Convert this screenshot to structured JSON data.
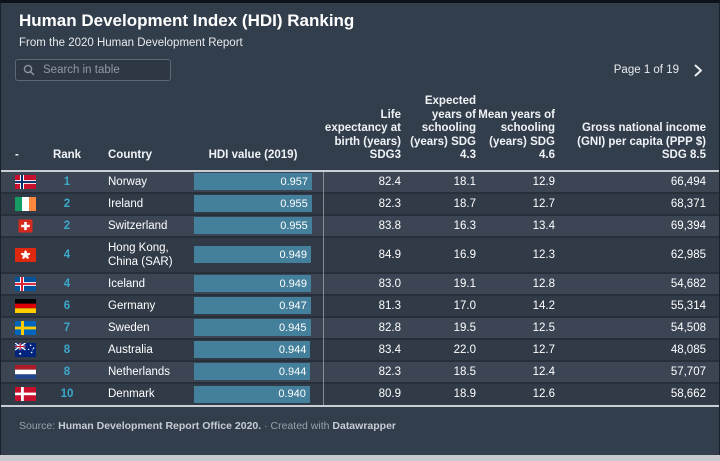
{
  "header": {
    "title": "Human Development Index (HDI) Ranking",
    "subtitle": "From the 2020 Human Development Report"
  },
  "search": {
    "placeholder": "Search in table",
    "icon": "search-icon"
  },
  "pagination": {
    "label": "Page 1 of 19",
    "next_icon": "chevron-right-icon"
  },
  "colors": {
    "panel_bg": "#333e4c",
    "row_light": "#3b4554",
    "row_dark": "#313b48",
    "bar_fill": "#44809b",
    "rank_accent": "#3da9c9",
    "header_rule": "#c9ced5"
  },
  "table": {
    "columns": [
      {
        "label": "-"
      },
      {
        "label": "Rank"
      },
      {
        "label": "Country"
      },
      {
        "label": "HDI value (2019)"
      },
      {
        "label": "Life expectancy at birth (years) SDG3"
      },
      {
        "label": "Expected years of schooling (years) SDG 4.3"
      },
      {
        "label": "Mean years of schooling (years) SDG 4.6"
      },
      {
        "label": "Gross national income (GNI) per capita (PPP $) SDG 8.5"
      }
    ],
    "rows": [
      {
        "flag": "no",
        "rank": "1",
        "country": "Norway",
        "hdi": "0.957",
        "hdi_value": 0.957,
        "life": "82.4",
        "expected": "18.1",
        "mean": "12.9",
        "gni": "66,494"
      },
      {
        "flag": "ie",
        "rank": "2",
        "country": "Ireland",
        "hdi": "0.955",
        "hdi_value": 0.955,
        "life": "82.3",
        "expected": "18.7",
        "mean": "12.7",
        "gni": "68,371"
      },
      {
        "flag": "ch",
        "rank": "2",
        "country": "Switzerland",
        "hdi": "0.955",
        "hdi_value": 0.955,
        "life": "83.8",
        "expected": "16.3",
        "mean": "13.4",
        "gni": "69,394"
      },
      {
        "flag": "hk",
        "rank": "4",
        "country": "Hong Kong, China (SAR)",
        "hdi": "0.949",
        "hdi_value": 0.949,
        "life": "84.9",
        "expected": "16.9",
        "mean": "12.3",
        "gni": "62,985"
      },
      {
        "flag": "is",
        "rank": "4",
        "country": "Iceland",
        "hdi": "0.949",
        "hdi_value": 0.949,
        "life": "83.0",
        "expected": "19.1",
        "mean": "12.8",
        "gni": "54,682"
      },
      {
        "flag": "de",
        "rank": "6",
        "country": "Germany",
        "hdi": "0.947",
        "hdi_value": 0.947,
        "life": "81.3",
        "expected": "17.0",
        "mean": "14.2",
        "gni": "55,314"
      },
      {
        "flag": "se",
        "rank": "7",
        "country": "Sweden",
        "hdi": "0.945",
        "hdi_value": 0.945,
        "life": "82.8",
        "expected": "19.5",
        "mean": "12.5",
        "gni": "54,508"
      },
      {
        "flag": "au",
        "rank": "8",
        "country": "Australia",
        "hdi": "0.944",
        "hdi_value": 0.944,
        "life": "83.4",
        "expected": "22.0",
        "mean": "12.7",
        "gni": "48,085"
      },
      {
        "flag": "nl",
        "rank": "8",
        "country": "Netherlands",
        "hdi": "0.944",
        "hdi_value": 0.944,
        "life": "82.3",
        "expected": "18.5",
        "mean": "12.4",
        "gni": "57,707"
      },
      {
        "flag": "dk",
        "rank": "10",
        "country": "Denmark",
        "hdi": "0.940",
        "hdi_value": 0.94,
        "life": "80.9",
        "expected": "18.9",
        "mean": "12.6",
        "gni": "58,662"
      }
    ]
  },
  "footer": {
    "source_prefix": "Source:",
    "source_link": "Human Development Report Office 2020.",
    "separator": "·",
    "created_prefix": "Created with",
    "created_link": "Datawrapper"
  },
  "chart_data": {
    "type": "table",
    "title": "Human Development Index (HDI) Ranking",
    "subtitle": "From the 2020 Human Development Report",
    "bar_column": {
      "name": "HDI value (2019)",
      "range": [
        0,
        0.957
      ],
      "fill": "#44809b"
    },
    "columns": [
      "Rank",
      "Country",
      "HDI value (2019)",
      "Life expectancy at birth (years) SDG3",
      "Expected years of schooling (years) SDG 4.3",
      "Mean years of schooling (years) SDG 4.6",
      "Gross national income (GNI) per capita (PPP $) SDG 8.5"
    ],
    "rows": [
      [
        1,
        "Norway",
        0.957,
        82.4,
        18.1,
        12.9,
        66494
      ],
      [
        2,
        "Ireland",
        0.955,
        82.3,
        18.7,
        12.7,
        68371
      ],
      [
        2,
        "Switzerland",
        0.955,
        83.8,
        16.3,
        13.4,
        69394
      ],
      [
        4,
        "Hong Kong, China (SAR)",
        0.949,
        84.9,
        16.9,
        12.3,
        62985
      ],
      [
        4,
        "Iceland",
        0.949,
        83.0,
        19.1,
        12.8,
        54682
      ],
      [
        6,
        "Germany",
        0.947,
        81.3,
        17.0,
        14.2,
        55314
      ],
      [
        7,
        "Sweden",
        0.945,
        82.8,
        19.5,
        12.5,
        54508
      ],
      [
        8,
        "Australia",
        0.944,
        83.4,
        22.0,
        12.7,
        48085
      ],
      [
        8,
        "Netherlands",
        0.944,
        82.3,
        18.5,
        12.4,
        57707
      ],
      [
        10,
        "Denmark",
        0.94,
        80.9,
        18.9,
        12.6,
        58662
      ]
    ]
  }
}
